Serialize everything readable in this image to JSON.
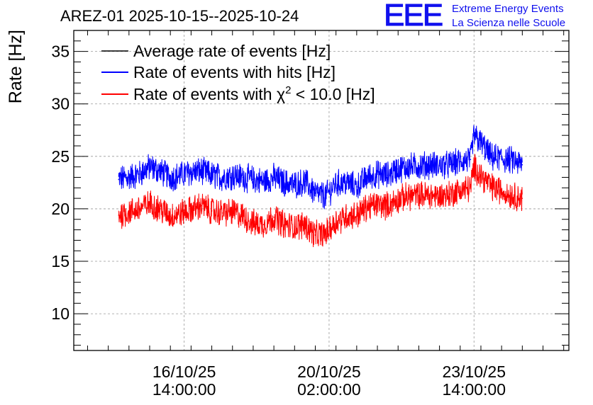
{
  "header": {
    "title": "AREZ-01 2025-10-15--2025-10-24",
    "logo": {
      "mark": "EEE",
      "line1": "Extreme Energy Events",
      "line2": "La Scienza nelle Scuole",
      "color": "#1010ee"
    }
  },
  "chart_data": {
    "type": "line",
    "title": "AREZ-01 2025-10-15--2025-10-24",
    "xlabel": "",
    "ylabel": "Rate [Hz]",
    "ylim": [
      6.5,
      37
    ],
    "yticks": [
      10,
      15,
      20,
      25,
      30,
      35
    ],
    "x_ticks": [
      {
        "date": "16/10/25",
        "time": "14:00:00",
        "hours": 38
      },
      {
        "date": "20/10/25",
        "time": "02:00:00",
        "hours": 122
      },
      {
        "date": "23/10/25",
        "time": "14:00:00",
        "hours": 206
      }
    ],
    "xlim_hours": [
      -26,
      261
    ],
    "x_unit": "hours since 2025-10-15 00:00",
    "grid": true,
    "legend_position": "top-left",
    "legend": [
      {
        "label": "Average rate of events [Hz]",
        "color": "#000000"
      },
      {
        "label": "Rate of events with hits [Hz]",
        "color": "#0000ff"
      },
      {
        "label_prefix": "Rate of events with ",
        "symbol": "χ",
        "superscript": "2",
        "label_suffix": " < 10.0 [Hz]",
        "color": "#ff0000"
      }
    ],
    "series": [
      {
        "name": "Rate of events with hits [Hz]",
        "color": "#0000ff",
        "noise": 1.2,
        "x": [
          0,
          6,
          12,
          18,
          24,
          30,
          36,
          42,
          48,
          54,
          60,
          66,
          72,
          78,
          84,
          90,
          96,
          102,
          108,
          114,
          120,
          126,
          132,
          138,
          144,
          150,
          156,
          162,
          168,
          174,
          180,
          186,
          192,
          198,
          204,
          206,
          210,
          216,
          222,
          228,
          234
        ],
        "values": [
          22.8,
          23.0,
          23.3,
          24.0,
          23.6,
          23.0,
          23.2,
          23.5,
          23.6,
          23.2,
          23.0,
          23.2,
          23.0,
          22.8,
          22.6,
          23.0,
          22.5,
          22.3,
          22.6,
          21.5,
          21.2,
          22.4,
          22.5,
          22.1,
          23.0,
          23.3,
          23.2,
          23.8,
          24.0,
          24.1,
          24.2,
          24.1,
          24.2,
          24.5,
          24.7,
          27.0,
          26.3,
          24.9,
          24.8,
          24.6,
          24.2
        ]
      },
      {
        "name": "Rate of events with χ2 < 10.0 [Hz]",
        "color": "#ff0000",
        "noise": 1.2,
        "x": [
          0,
          6,
          12,
          18,
          24,
          30,
          36,
          42,
          48,
          54,
          60,
          66,
          72,
          78,
          84,
          90,
          96,
          102,
          108,
          114,
          120,
          126,
          132,
          138,
          144,
          150,
          156,
          162,
          168,
          174,
          180,
          186,
          192,
          198,
          204,
          206,
          210,
          216,
          222,
          228,
          234
        ],
        "values": [
          19.4,
          19.7,
          20.0,
          20.5,
          20.0,
          19.3,
          19.6,
          19.9,
          20.3,
          19.8,
          19.6,
          19.7,
          19.3,
          18.6,
          18.5,
          19.2,
          18.5,
          18.3,
          18.5,
          17.5,
          17.6,
          18.8,
          19.3,
          19.4,
          20.2,
          20.4,
          20.3,
          20.9,
          21.2,
          21.3,
          21.3,
          21.2,
          21.4,
          21.8,
          22.0,
          24.0,
          23.2,
          22.1,
          21.7,
          21.3,
          21.0
        ]
      }
    ]
  }
}
